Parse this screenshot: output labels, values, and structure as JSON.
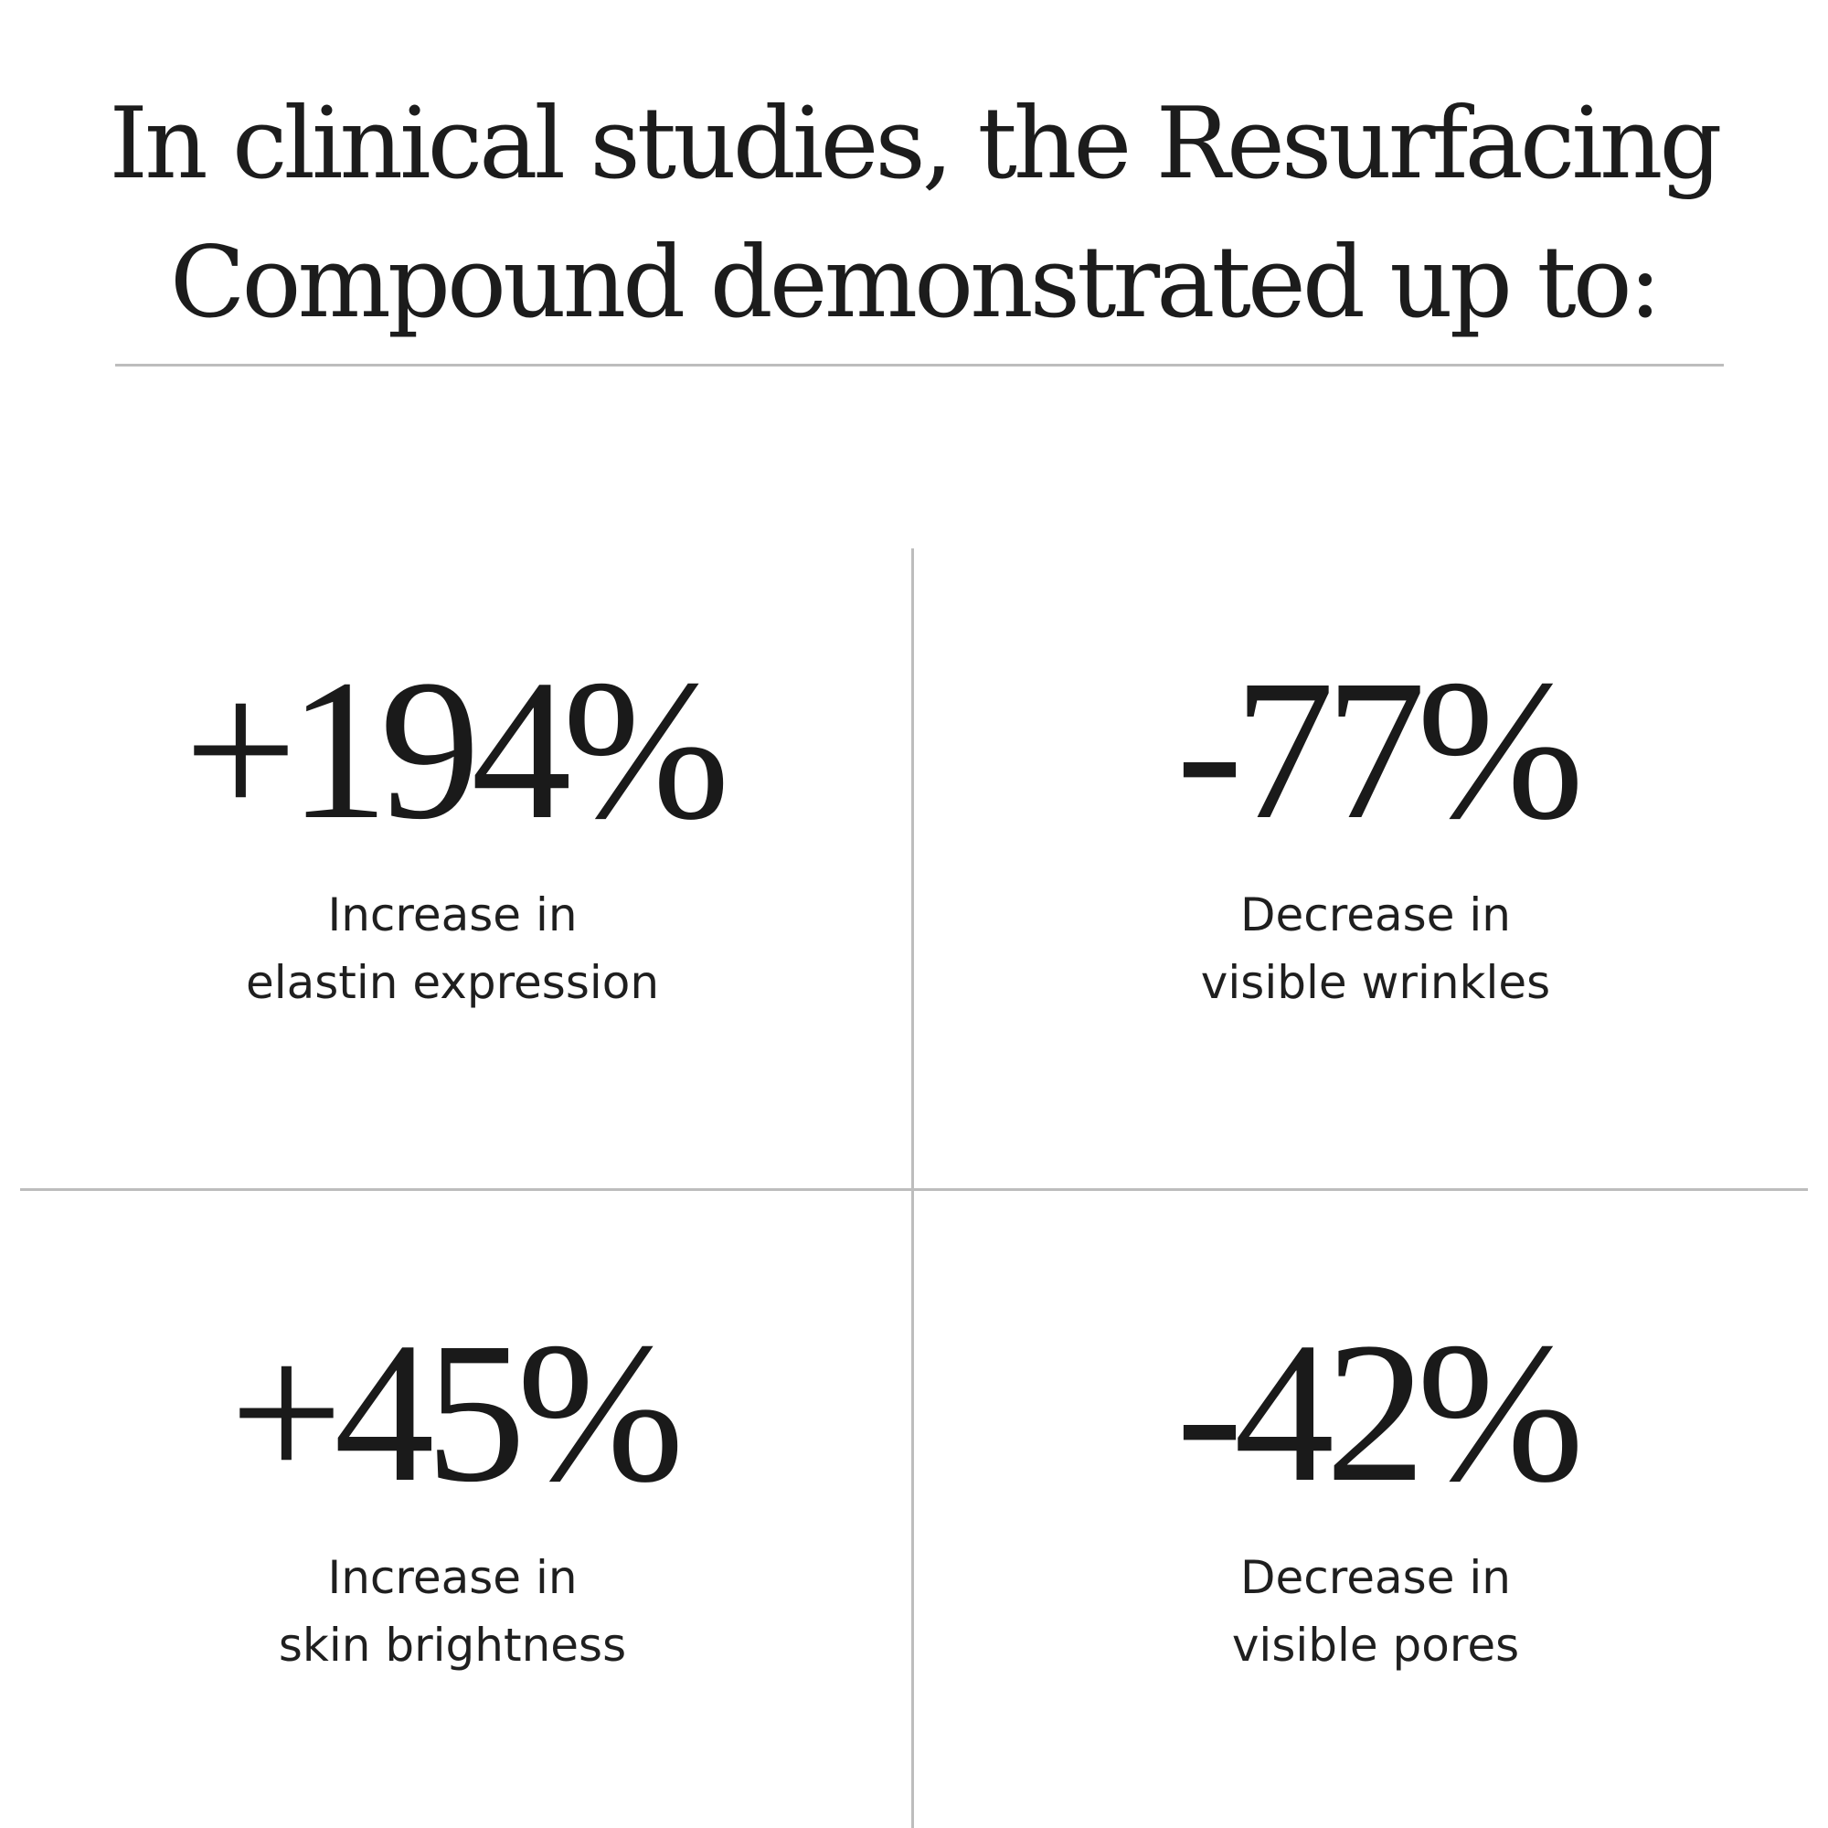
{
  "headline": {
    "line1": "In clinical studies, the Resurfacing",
    "line2": "Compound demonstrated up to:"
  },
  "stats": [
    {
      "value": "+194%",
      "label_line1": "Increase in",
      "label_line2": "elastin expression"
    },
    {
      "value": "-77%",
      "label_line1": "Decrease in",
      "label_line2": "visible wrinkles"
    },
    {
      "value": "+45%",
      "label_line1": "Increase in",
      "label_line2": "skin brightness"
    },
    {
      "value": "-42%",
      "label_line1": "Decrease in",
      "label_line2": "visible pores"
    }
  ]
}
